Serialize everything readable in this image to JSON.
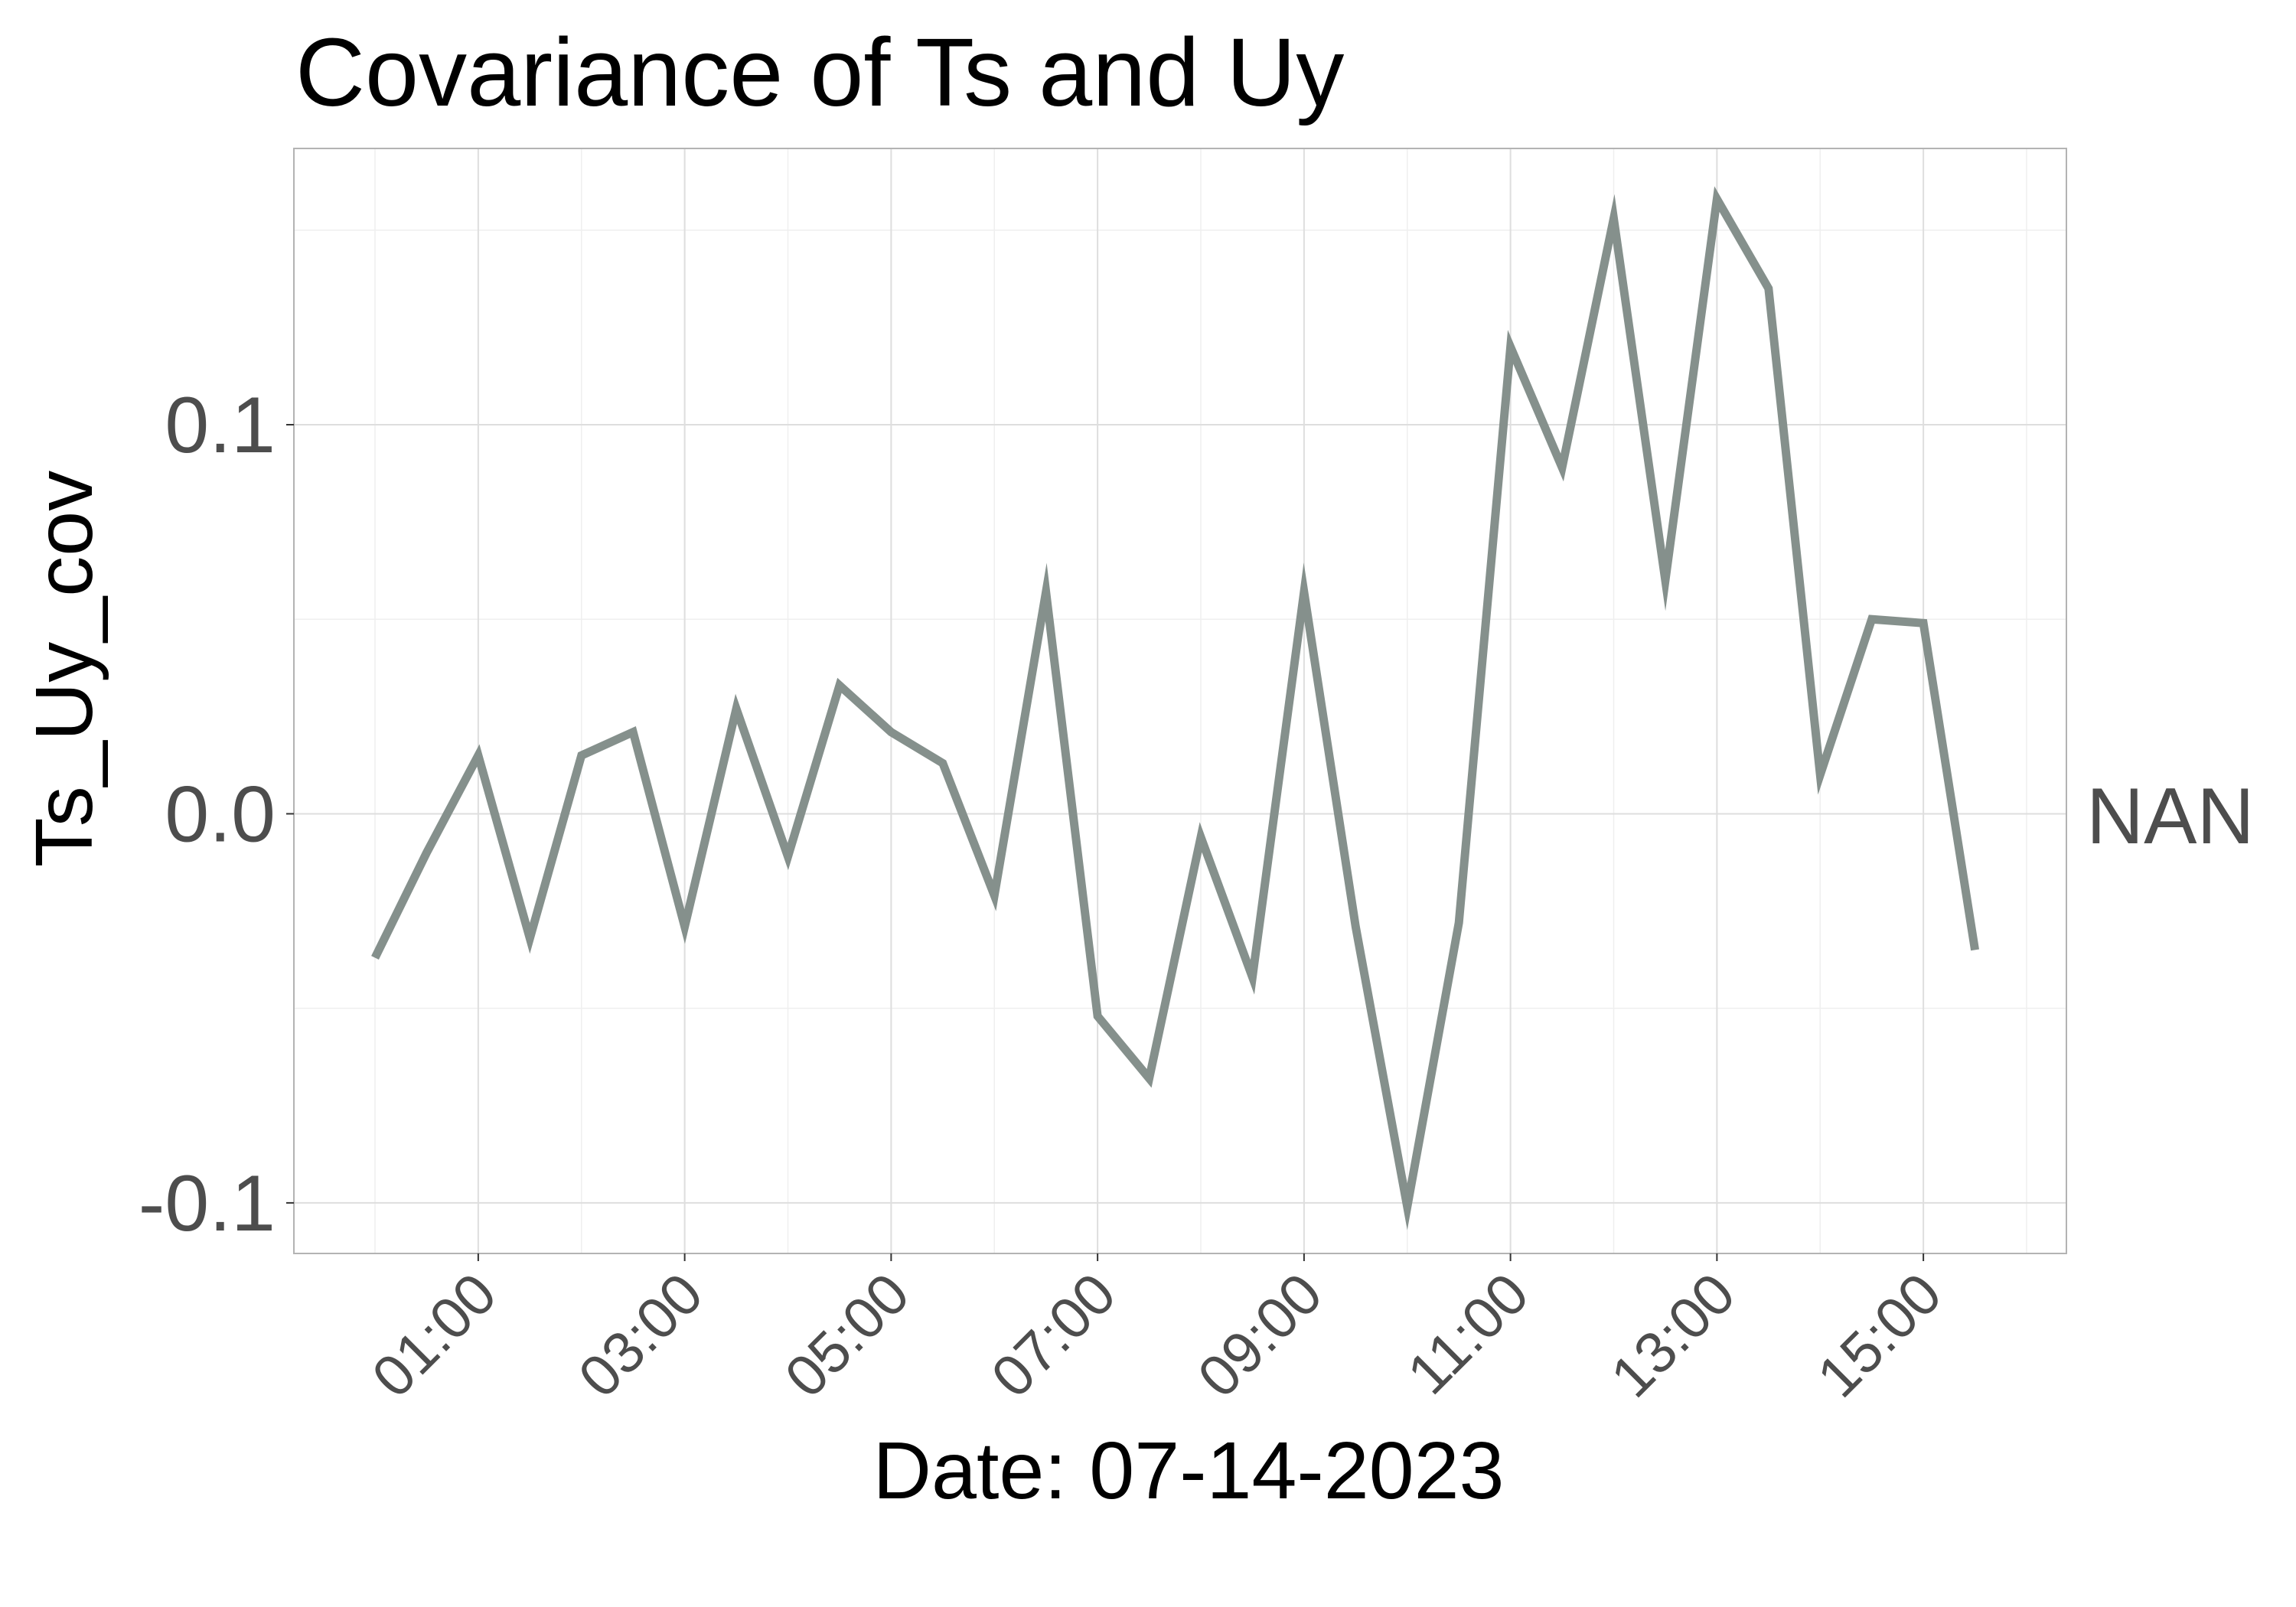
{
  "chart_data": {
    "type": "line",
    "title": "Covariance of Ts and Uy",
    "xlabel": "Date: 07-14-2023",
    "ylabel": "Ts_Uy_cov",
    "x_ticks": [
      "01:00",
      "03:00",
      "05:00",
      "07:00",
      "09:00",
      "11:00",
      "13:00",
      "15:00"
    ],
    "y_ticks": [
      "-0.1",
      "0.0",
      "0.1"
    ],
    "y_tick_values": [
      -0.1,
      0.0,
      0.1
    ],
    "xlim": [
      "00:00",
      "16:00"
    ],
    "ylim": [
      -0.113,
      0.171
    ],
    "grid": true,
    "line_color": "#85908c",
    "side_label": "NAN",
    "series": [
      {
        "x": [
          "00:00",
          "00:30",
          "01:00",
          "01:30",
          "02:00",
          "02:30",
          "03:00",
          "03:30",
          "04:00",
          "04:30",
          "05:00",
          "05:30",
          "06:00",
          "06:30",
          "07:00",
          "07:30",
          "08:00",
          "08:30",
          "09:00",
          "09:30",
          "10:00",
          "10:30",
          "11:00",
          "11:30",
          "12:00",
          "12:30",
          "13:00",
          "13:30",
          "14:00",
          "14:30",
          "15:00",
          "15:30"
        ],
        "values": [
          -0.037,
          -0.01,
          0.015,
          -0.032,
          0.015,
          0.021,
          -0.029,
          0.027,
          -0.011,
          0.033,
          0.021,
          0.013,
          -0.021,
          0.057,
          -0.052,
          -0.068,
          -0.006,
          -0.042,
          0.057,
          -0.029,
          -0.101,
          -0.028,
          0.12,
          0.089,
          0.153,
          0.06,
          0.158,
          0.135,
          0.01,
          0.05,
          0.049,
          -0.035
        ]
      }
    ]
  }
}
